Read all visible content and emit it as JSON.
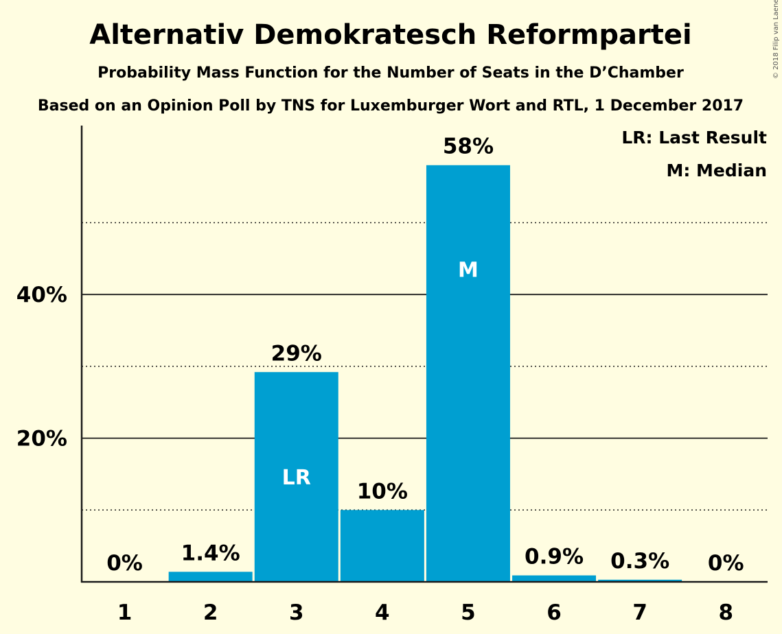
{
  "chart_data": {
    "type": "bar",
    "title": "Alternativ Demokratesch Reformpartei",
    "subtitle": "Probability Mass Function for the Number of Seats in the D’Chamber",
    "subtitle2": "Based on an Opinion Poll by TNS for Luxemburger Wort and RTL, 1 December 2017",
    "categories": [
      "1",
      "2",
      "3",
      "4",
      "5",
      "6",
      "7",
      "8"
    ],
    "values": [
      0,
      1.4,
      29.2,
      10,
      58,
      0.9,
      0.3,
      0
    ],
    "value_labels": [
      "0%",
      "1.4%",
      "29%",
      "10%",
      "58%",
      "0.9%",
      "0.3%",
      "0%"
    ],
    "inner_labels": [
      "",
      "",
      "LR",
      "",
      "M",
      "",
      "",
      ""
    ],
    "yticks": [
      20,
      40
    ],
    "ytick_labels": [
      "20%",
      "40%"
    ],
    "minor_gridlines": [
      10,
      30,
      50
    ],
    "ylim": [
      0,
      63
    ],
    "legend": [
      "LR: Last Result",
      "M: Median"
    ],
    "legend_position": "top-right",
    "copyright": "© 2018 Filip van Laenen",
    "colors": {
      "bar": "#009fd1",
      "background": "#fffde1",
      "text": "#1a1a1a"
    }
  }
}
